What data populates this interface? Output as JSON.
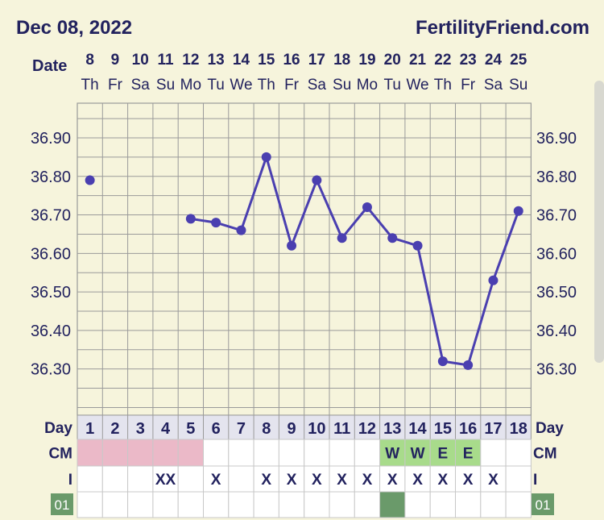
{
  "header": {
    "date": "Dec 08, 2022",
    "site": "FertilityFriend.com",
    "date_label": "Date"
  },
  "chart_data": {
    "type": "line",
    "dates": [
      "8",
      "9",
      "10",
      "11",
      "12",
      "13",
      "14",
      "15",
      "16",
      "17",
      "18",
      "19",
      "20",
      "21",
      "22",
      "23",
      "24",
      "25"
    ],
    "weekdays": [
      "Th",
      "Fr",
      "Sa",
      "Su",
      "Mo",
      "Tu",
      "We",
      "Th",
      "Fr",
      "Sa",
      "Su",
      "Mo",
      "Tu",
      "We",
      "Th",
      "Fr",
      "Sa",
      "Su"
    ],
    "cycle_days": [
      "1",
      "2",
      "3",
      "4",
      "5",
      "6",
      "7",
      "8",
      "9",
      "10",
      "11",
      "12",
      "13",
      "14",
      "15",
      "16",
      "17",
      "18"
    ],
    "temperatures": [
      36.79,
      null,
      null,
      null,
      36.69,
      36.68,
      36.66,
      36.85,
      36.62,
      36.79,
      36.64,
      36.72,
      36.64,
      36.62,
      36.32,
      36.31,
      36.53,
      36.71
    ],
    "ylim": [
      36.18,
      36.99
    ],
    "yticks": [
      "36.90",
      "36.80",
      "36.70",
      "36.60",
      "36.50",
      "36.40",
      "36.30"
    ],
    "y_axis_both_sides": true,
    "grid": true,
    "line_color": "#4a3fb0",
    "day_label": "Day",
    "rows": [
      {
        "label": "CM",
        "cells": [
          "",
          "",
          "",
          "",
          "",
          "",
          "",
          "",
          "",
          "",
          "",
          "",
          "W",
          "W",
          "E",
          "E",
          "",
          ""
        ],
        "highlights": [
          "period",
          "period",
          "period",
          "period",
          "period",
          "",
          "",
          "",
          "",
          "",
          "",
          "",
          "fertile",
          "fertile",
          "fertile",
          "fertile",
          "",
          ""
        ]
      },
      {
        "label": "I",
        "cells": [
          "",
          "",
          "",
          "XX",
          "",
          "X",
          "",
          "X",
          "X",
          "X",
          "X",
          "X",
          "X",
          "X",
          "X",
          "X",
          "X",
          ""
        ]
      }
    ],
    "bottom_row": {
      "tag": "01",
      "marked": [
        false,
        false,
        false,
        false,
        false,
        false,
        false,
        false,
        false,
        false,
        false,
        false,
        true,
        false,
        false,
        false,
        false,
        false
      ]
    },
    "colors": {
      "background": "#f6f4dc",
      "grid": "#9a9a9a",
      "period": "#ebb9c8",
      "fertile": "#a8db8b",
      "marker": "#6a9a6a",
      "text": "#22225e"
    }
  }
}
